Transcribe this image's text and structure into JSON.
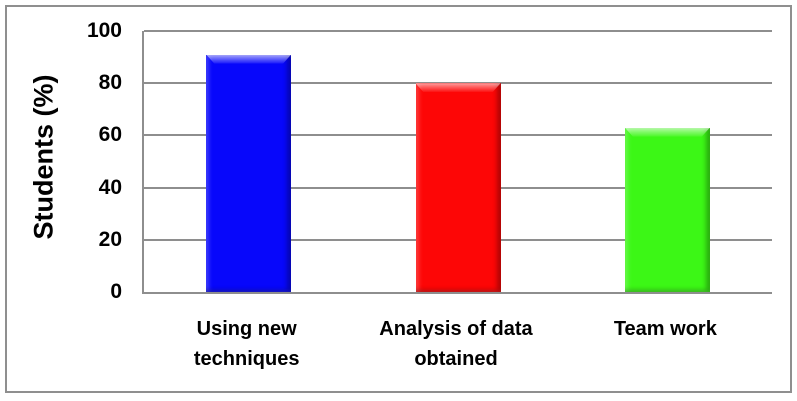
{
  "chart_data": {
    "type": "bar",
    "title": "",
    "categories": [
      "Using new techniques",
      "Analysis of data obtained",
      "Team work"
    ],
    "values": [
      91,
      80,
      63
    ],
    "bar_colors": [
      "#0707fb",
      "#fd0606",
      "#3cf716"
    ],
    "xlabel": "",
    "ylabel": "Students (%)",
    "ylim": [
      0,
      100
    ],
    "yticks": [
      0,
      20,
      40,
      60,
      80,
      100
    ],
    "grid": true,
    "legend": false
  },
  "colors": {
    "grid": "#8e8e8e",
    "axis": "#8e8e8e",
    "frame_border": "#8f8f8f",
    "background": "#ffffff",
    "text": "#000000"
  }
}
